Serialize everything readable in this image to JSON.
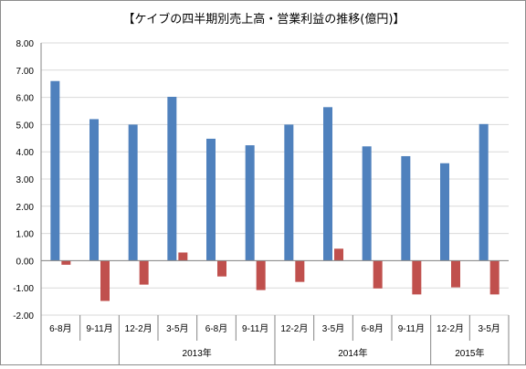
{
  "chart_data": {
    "type": "bar",
    "title": "【ケイブの四半期別売上高・営業利益の推移(億円)】",
    "ylim": [
      -2,
      8
    ],
    "yticks": [
      "8.00",
      "7.00",
      "6.00",
      "5.00",
      "4.00",
      "3.00",
      "2.00",
      "1.00",
      "0.00",
      "-1.00",
      "-2.00"
    ],
    "categories": [
      "6-8月",
      "9-11月",
      "12-2月",
      "3-5月",
      "6-8月",
      "9-11月",
      "12-2月",
      "3-5月",
      "6-8月",
      "9-11月",
      "12-2月",
      "3-5月"
    ],
    "series": [
      {
        "values": [
          6.6,
          5.2,
          5.0,
          6.02,
          4.48,
          4.24,
          5.0,
          5.64,
          4.2,
          3.84,
          3.58,
          5.02
        ],
        "color": "#4f81bd"
      },
      {
        "values": [
          -0.15,
          -1.48,
          -0.88,
          0.3,
          -0.58,
          -1.08,
          -0.78,
          0.44,
          -1.02,
          -1.24,
          -0.98,
          -1.24
        ],
        "color": "#c0504d"
      }
    ],
    "groups": [
      {
        "label": "",
        "count": 2
      },
      {
        "label": "2013年",
        "count": 4
      },
      {
        "label": "2014年",
        "count": 4
      },
      {
        "label": "2015年",
        "count": 2
      }
    ],
    "grid": true,
    "legend": "none"
  }
}
